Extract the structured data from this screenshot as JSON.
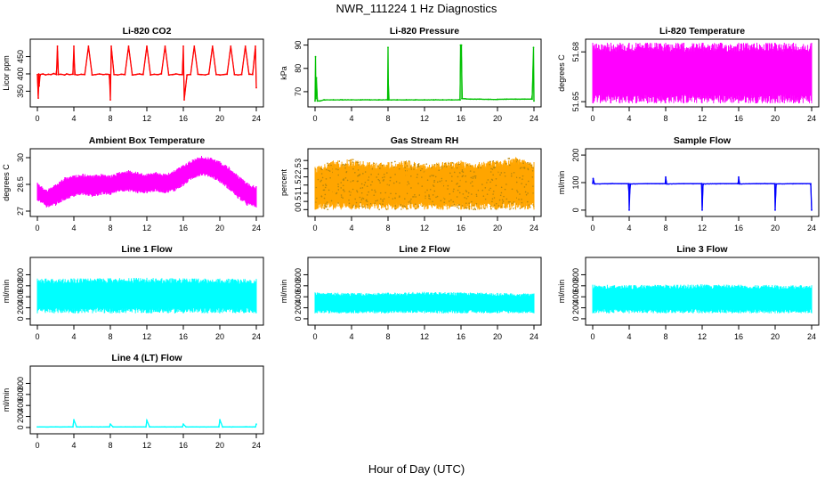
{
  "figure": {
    "title": "NWR_111224  1 Hz Diagnostics",
    "xlabel": "Hour of Day (UTC)"
  },
  "chart_data": [
    {
      "type": "line",
      "title": "Li-820 CO2",
      "ylabel": "Licor ppm",
      "color": "#ff0000",
      "xlim": [
        0,
        24
      ],
      "ylim": [
        315,
        490
      ],
      "xticks": [
        0,
        4,
        8,
        12,
        16,
        20,
        24
      ],
      "yticks": [
        350,
        400,
        450
      ],
      "x": [
        0,
        0.1,
        0.15,
        0.2,
        0.3,
        0.6,
        0.9,
        1.2,
        1.5,
        1.8,
        2.1,
        2.2,
        2.3,
        2.6,
        3.0,
        3.2,
        3.5,
        3.9,
        4.0,
        4.1,
        4.4,
        4.8,
        5.2,
        5.6,
        6.0,
        6.4,
        6.8,
        7.2,
        7.6,
        7.9,
        8.0,
        8.1,
        8.4,
        8.8,
        9.2,
        9.6,
        10.0,
        10.4,
        10.8,
        11.2,
        11.6,
        12.0,
        12.4,
        12.8,
        13.2,
        13.6,
        14.0,
        14.4,
        14.8,
        15.2,
        15.6,
        15.9,
        16.0,
        16.1,
        16.4,
        16.8,
        17.2,
        17.6,
        18.0,
        18.4,
        18.8,
        19.2,
        19.6,
        20.0,
        20.4,
        20.8,
        21.2,
        21.6,
        22.0,
        22.4,
        22.8,
        23.2,
        23.6,
        23.9,
        24.0
      ],
      "y": [
        398,
        330,
        400,
        365,
        398,
        400,
        397,
        399,
        398,
        401,
        398,
        480,
        398,
        399,
        397,
        400,
        398,
        399,
        480,
        398,
        397,
        399,
        398,
        480,
        397,
        398,
        400,
        398,
        399,
        398,
        325,
        480,
        398,
        397,
        399,
        398,
        480,
        397,
        398,
        400,
        398,
        480,
        397,
        399,
        398,
        400,
        480,
        397,
        398,
        400,
        398,
        398,
        480,
        325,
        397,
        398,
        480,
        399,
        398,
        397,
        400,
        480,
        398,
        397,
        398,
        399,
        480,
        398,
        397,
        398,
        480,
        399,
        398,
        480,
        360
      ]
    },
    {
      "type": "line",
      "title": "Li-820 Pressure",
      "ylabel": "kPa",
      "color": "#00c000",
      "xlim": [
        0,
        24
      ],
      "ylim": [
        65,
        91
      ],
      "xticks": [
        0,
        4,
        8,
        12,
        16,
        20,
        24
      ],
      "yticks": [
        70,
        80,
        90
      ],
      "x": [
        0,
        0.05,
        0.1,
        0.15,
        0.25,
        0.5,
        1,
        2,
        3,
        4,
        5,
        6,
        7,
        7.95,
        8.0,
        8.05,
        9,
        10,
        11,
        12,
        13,
        14,
        15,
        15.9,
        15.95,
        16.05,
        16.1,
        17,
        18,
        19,
        20,
        21,
        22,
        23,
        23.8,
        23.95,
        24
      ],
      "y": [
        66,
        85,
        67,
        76,
        66,
        66,
        66.5,
        66.5,
        66.5,
        66.5,
        66.5,
        66.5,
        66.5,
        66.5,
        89,
        66.5,
        66.5,
        66.5,
        66.5,
        66.5,
        66.5,
        66.5,
        66.5,
        66.5,
        90,
        90,
        67,
        66.8,
        66.8,
        66.7,
        66.7,
        66.8,
        66.8,
        66.8,
        66.8,
        89,
        66
      ]
    },
    {
      "type": "area",
      "title": "Li-820 Temperature",
      "ylabel": "degrees C",
      "color": "#ff00ff",
      "xlim": [
        0,
        24
      ],
      "ylim": [
        51.649,
        51.6855
      ],
      "xticks": [
        0,
        4,
        8,
        12,
        16,
        20,
        24
      ],
      "yticks": [
        51.65,
        51.68
      ],
      "x": [
        0,
        2,
        3,
        4,
        6,
        8,
        10,
        12,
        14,
        16,
        18,
        20,
        21,
        22,
        24
      ],
      "y_max": [
        51.6855,
        51.6855,
        51.6855,
        51.6855,
        51.6855,
        51.6855,
        51.6855,
        51.6855,
        51.6855,
        51.6855,
        51.6855,
        51.6855,
        51.6855,
        51.6855,
        51.6855
      ],
      "y_min": [
        51.649,
        51.649,
        51.649,
        51.649,
        51.649,
        51.649,
        51.649,
        51.649,
        51.649,
        51.649,
        51.649,
        51.649,
        51.649,
        51.649,
        51.649
      ]
    },
    {
      "type": "area",
      "title": "Ambient Box Temperature",
      "ylabel": "degrees C",
      "color": "#ff00ff",
      "xlim": [
        0,
        24
      ],
      "ylim": [
        26.9,
        30.3
      ],
      "xticks": [
        0,
        4,
        8,
        12,
        16,
        20,
        24
      ],
      "yticks": [
        27.0,
        28.5,
        30.0
      ],
      "x": [
        0,
        1,
        2,
        3,
        4,
        5,
        6,
        7,
        8,
        9,
        10,
        11,
        12,
        13,
        14,
        15,
        16,
        17,
        18,
        19,
        20,
        21,
        22,
        23,
        24
      ],
      "y_max": [
        28.6,
        28.2,
        28.5,
        28.9,
        29.0,
        29.1,
        29.0,
        29.1,
        29.0,
        29.2,
        29.3,
        29.2,
        29.1,
        29.2,
        29.1,
        29.3,
        29.6,
        29.9,
        30.1,
        30.0,
        29.8,
        29.5,
        29.0,
        28.6,
        28.4
      ],
      "y_min": [
        27.6,
        27.2,
        27.3,
        27.6,
        27.8,
        27.9,
        27.8,
        27.9,
        27.9,
        28.1,
        28.1,
        28.0,
        28.0,
        28.1,
        28.0,
        28.1,
        28.4,
        28.8,
        29.0,
        28.9,
        28.6,
        28.2,
        27.7,
        27.3,
        27.2
      ]
    },
    {
      "type": "scatter",
      "title": "Gas Stream RH",
      "ylabel": "percent",
      "color": "#ffa500",
      "xlim": [
        0,
        24
      ],
      "ylim": [
        -0.2,
        3.5
      ],
      "xticks": [
        0,
        4,
        8,
        12,
        16,
        20,
        24
      ],
      "yticks": [
        0.0,
        0.5,
        1.0,
        1.5,
        2.0,
        2.5,
        3.0
      ],
      "x": [
        0,
        2,
        4,
        6,
        8,
        10,
        12,
        14,
        16,
        18,
        20,
        22,
        24
      ],
      "y_max": [
        2.6,
        3.0,
        3.1,
        2.9,
        2.9,
        3.0,
        2.8,
        2.9,
        3.0,
        2.9,
        3.0,
        3.2,
        2.9
      ],
      "y_min": [
        0.0,
        0.0,
        0.0,
        0.0,
        0.0,
        0.0,
        0.0,
        0.0,
        0.0,
        0.0,
        0.0,
        0.0,
        0.0
      ]
    },
    {
      "type": "line",
      "title": "Sample Flow",
      "ylabel": "ml/min",
      "color": "#0000ff",
      "xlim": [
        0,
        24
      ],
      "ylim": [
        -10,
        210
      ],
      "xticks": [
        0,
        4,
        8,
        12,
        16,
        20,
        24
      ],
      "yticks": [
        0,
        100,
        200
      ],
      "x": [
        0,
        0.05,
        0.2,
        2,
        3.95,
        4.0,
        4.1,
        6,
        7.95,
        8.0,
        8.1,
        10,
        11.95,
        12.0,
        12.1,
        14,
        15.95,
        16.0,
        16.1,
        18,
        19.95,
        20.0,
        20.1,
        22,
        23.9,
        24.0
      ],
      "y": [
        97,
        115,
        95,
        96,
        96,
        0,
        95,
        96,
        96,
        120,
        95,
        96,
        96,
        0,
        95,
        96,
        96,
        120,
        95,
        96,
        96,
        0,
        95,
        96,
        96,
        0
      ]
    },
    {
      "type": "area",
      "title": "Line 1 Flow",
      "ylabel": "ml/min",
      "color": "#00ffff",
      "xlim": [
        0,
        24
      ],
      "ylim": [
        -50,
        1050
      ],
      "xticks": [
        0,
        4,
        8,
        12,
        16,
        20,
        24
      ],
      "yticks": [
        0,
        200,
        400,
        600,
        800
      ],
      "x": [
        0,
        4,
        8,
        12,
        16,
        20,
        24
      ],
      "y_max": [
        730,
        735,
        740,
        745,
        735,
        730,
        725
      ],
      "y_min": [
        100,
        100,
        100,
        100,
        100,
        100,
        100
      ]
    },
    {
      "type": "area",
      "title": "Line 2 Flow",
      "ylabel": "ml/min",
      "color": "#00ffff",
      "xlim": [
        0,
        24
      ],
      "ylim": [
        -50,
        1050
      ],
      "xticks": [
        0,
        4,
        8,
        12,
        16,
        20,
        24
      ],
      "yticks": [
        0,
        200,
        400,
        600,
        800
      ],
      "x": [
        0,
        4,
        8,
        12,
        16,
        20,
        24
      ],
      "y_max": [
        480,
        470,
        475,
        490,
        480,
        470,
        460
      ],
      "y_min": [
        100,
        100,
        100,
        100,
        100,
        100,
        100
      ]
    },
    {
      "type": "area",
      "title": "Line 3 Flow",
      "ylabel": "ml/min",
      "color": "#00ffff",
      "xlim": [
        0,
        24
      ],
      "ylim": [
        -50,
        1050
      ],
      "xticks": [
        0,
        4,
        8,
        12,
        16,
        20,
        24
      ],
      "yticks": [
        0,
        200,
        400,
        600,
        800
      ],
      "x": [
        0,
        4,
        8,
        12,
        16,
        20,
        24
      ],
      "y_max": [
        620,
        615,
        620,
        625,
        620,
        615,
        610
      ],
      "y_min": [
        100,
        100,
        100,
        100,
        100,
        100,
        100
      ]
    },
    {
      "type": "line",
      "title": "Line 4 (LT) Flow",
      "ylabel": "ml/min",
      "color": "#00ffff",
      "xlim": [
        0,
        24
      ],
      "ylim": [
        -50,
        1050
      ],
      "xticks": [
        0,
        4,
        8,
        12,
        16,
        20,
        24
      ],
      "yticks": [
        0,
        200,
        400,
        600,
        800
      ],
      "x": [
        0,
        3.9,
        4.0,
        4.3,
        7.9,
        8.0,
        8.3,
        11.9,
        12.0,
        12.3,
        15.9,
        16.0,
        16.3,
        19.9,
        20.0,
        20.3,
        23.9,
        24.0
      ],
      "y": [
        10,
        10,
        140,
        10,
        10,
        60,
        10,
        10,
        130,
        10,
        10,
        60,
        10,
        10,
        140,
        10,
        10,
        60
      ]
    }
  ]
}
